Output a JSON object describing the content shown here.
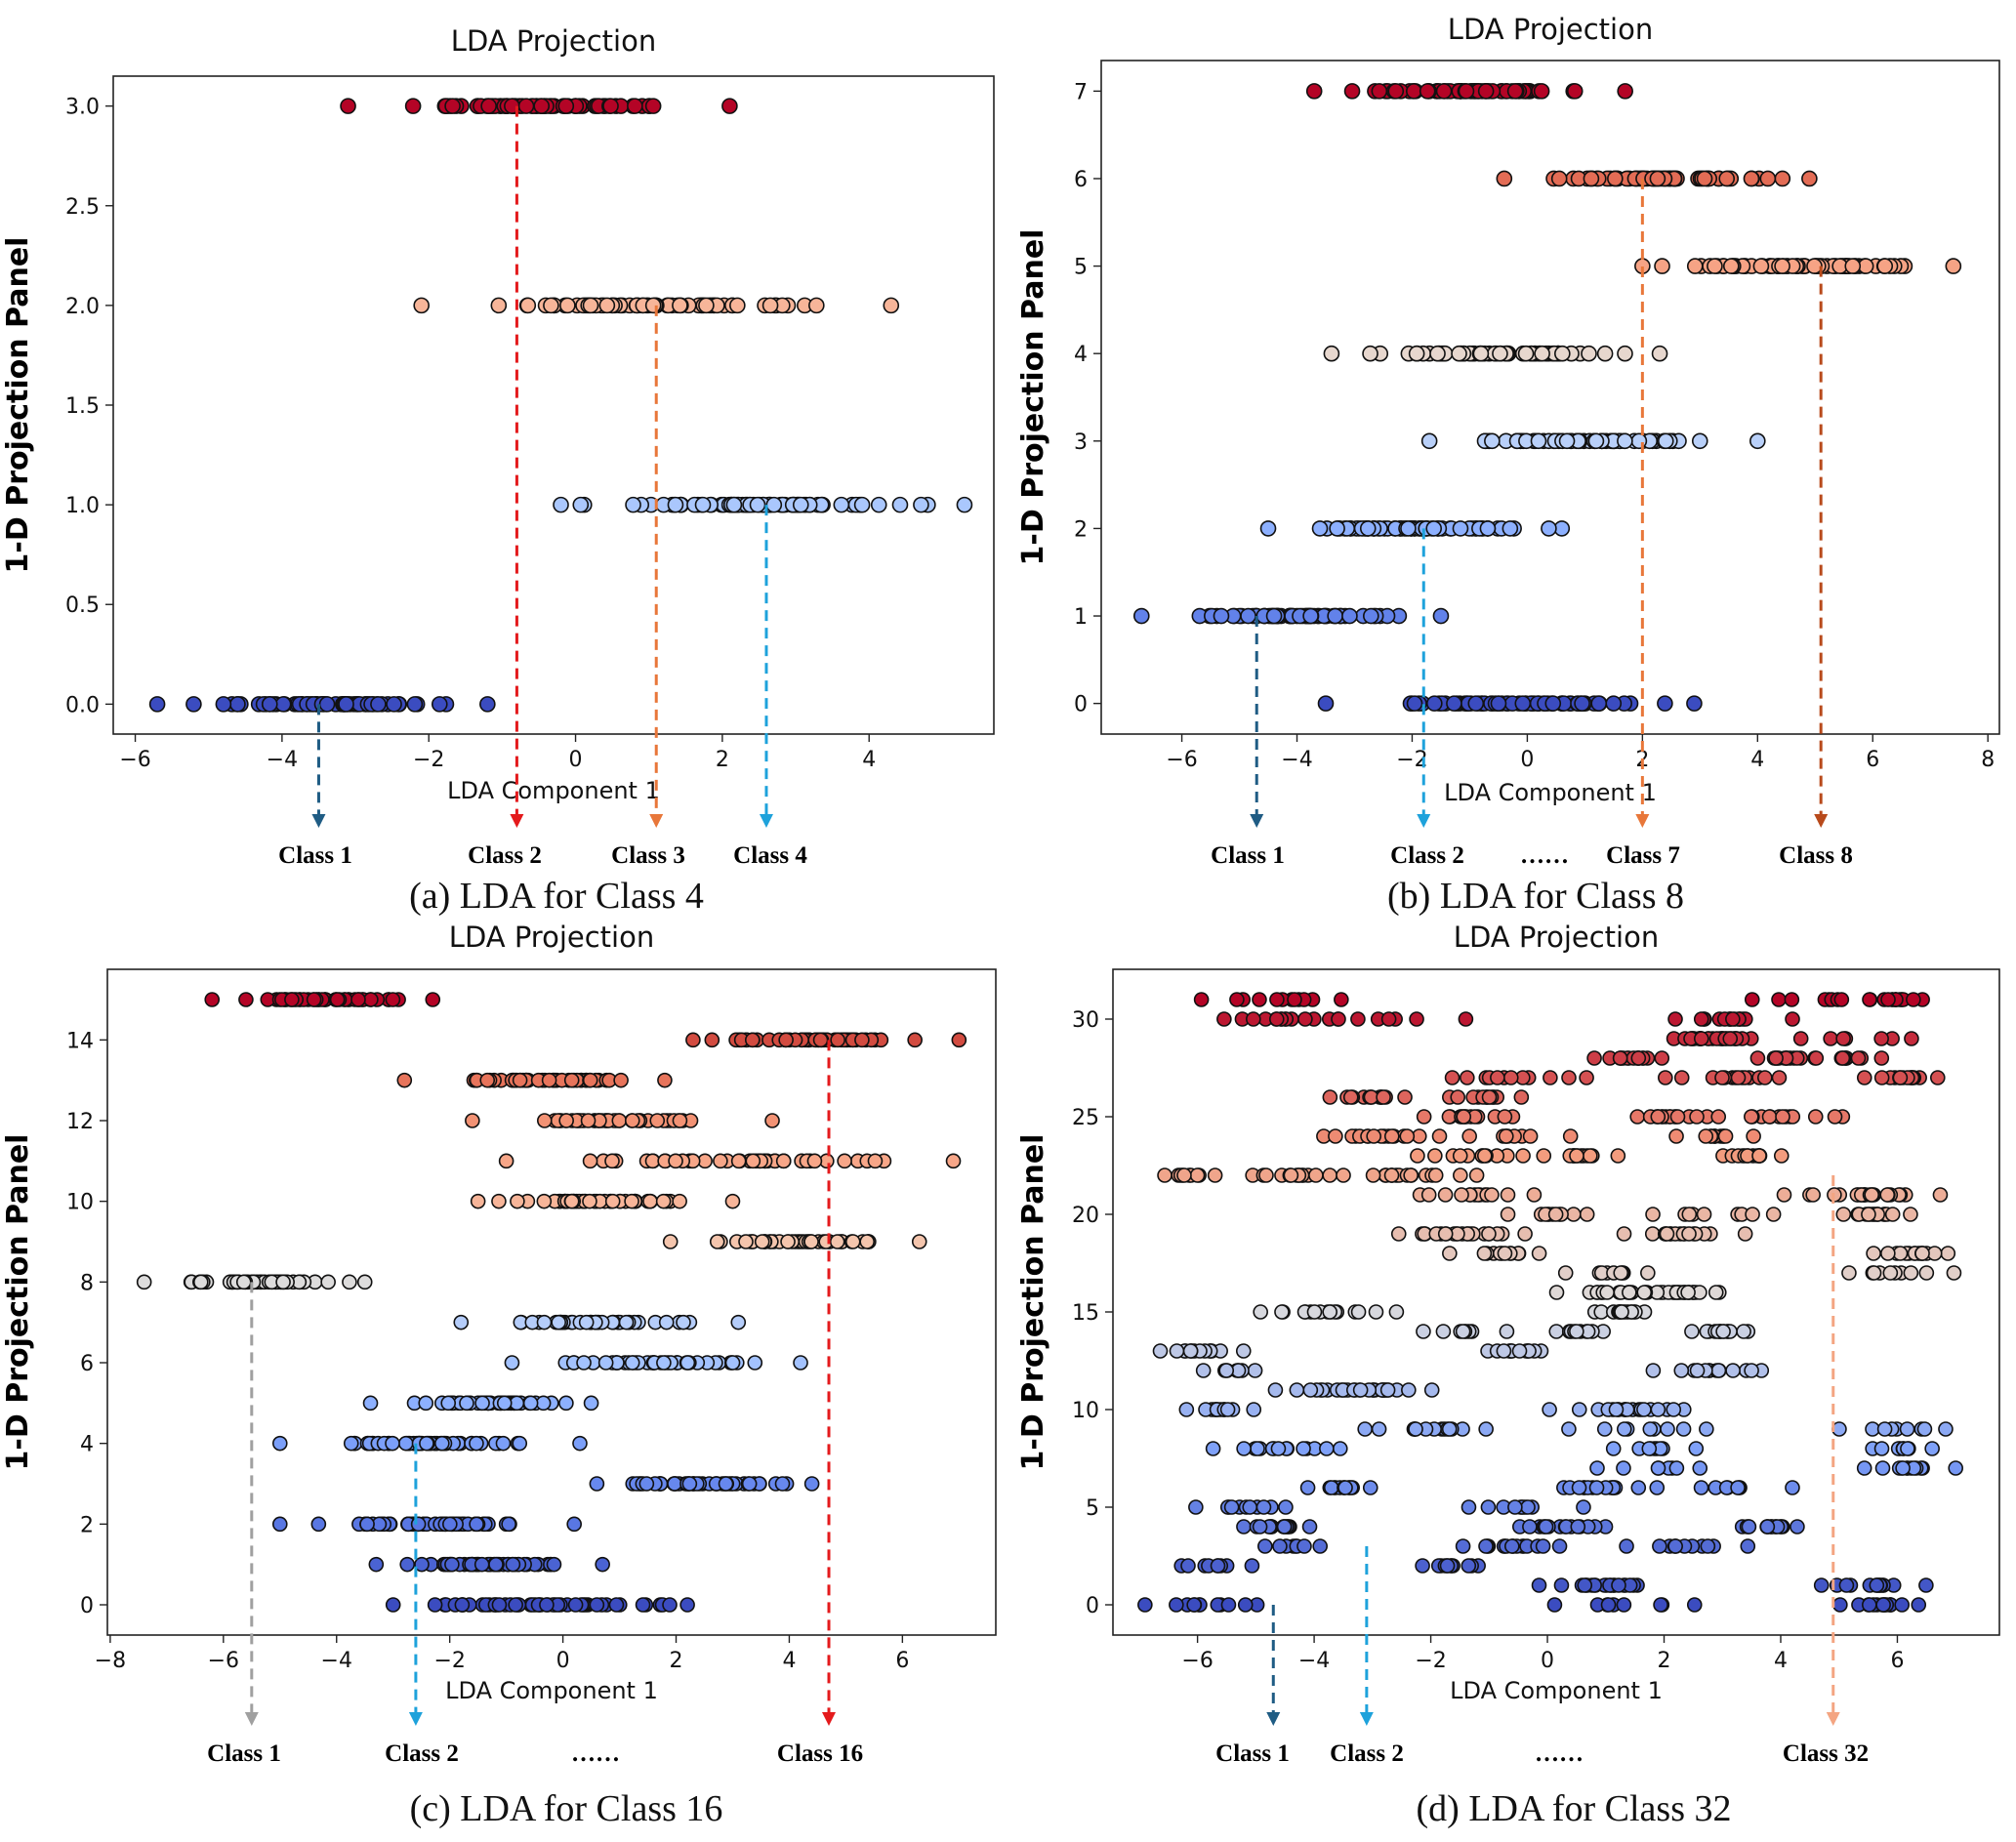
{
  "chart_data": [
    {
      "type": "scatter",
      "title": "LDA Projection",
      "xlabel": "LDA Component 1",
      "ylabel": "1-D Projection Panel",
      "caption": "(a) LDA for Class 4",
      "xlim": [
        -6.3,
        5.7
      ],
      "ylim": [
        -0.15,
        3.15
      ],
      "xticks": [
        -6,
        -4,
        -2,
        0,
        2,
        4
      ],
      "yticks": [
        0.0,
        0.5,
        1.0,
        1.5,
        2.0,
        2.5,
        3.0
      ],
      "ytick_labels": [
        "0.0",
        "0.5",
        "1.0",
        "1.5",
        "2.0",
        "2.5",
        "3.0"
      ],
      "series": [
        {
          "level": 0.0,
          "color": "#3b4cc0",
          "xmin": -5.7,
          "xmax": -1.2,
          "count": 70
        },
        {
          "level": 1.0,
          "color": "#aac7fd",
          "xmin": -0.2,
          "xmax": 5.3,
          "count": 80
        },
        {
          "level": 2.0,
          "color": "#f7b599",
          "xmin": -2.1,
          "xmax": 4.3,
          "count": 70
        },
        {
          "level": 3.0,
          "color": "#b40426",
          "xmin": -3.1,
          "xmax": 2.1,
          "count": 70
        }
      ],
      "arrows": [
        {
          "x": -3.5,
          "label": "Class 1",
          "color": "#1f5c84",
          "style": "dashed"
        },
        {
          "x": -0.8,
          "label": "Class 2",
          "color": "#e41a1c",
          "style": "dashed"
        },
        {
          "x": 1.1,
          "label": "Class 3",
          "color": "#e8773a",
          "style": "dashed"
        },
        {
          "x": 2.6,
          "label": "Class 4",
          "color": "#1ea2db",
          "style": "dashed"
        }
      ],
      "ellipsis": ""
    },
    {
      "type": "scatter",
      "title": "LDA Projection",
      "xlabel": "LDA Component 1",
      "ylabel": "1-D Projection Panel",
      "caption": "(b) LDA for Class 8",
      "xlim": [
        -7.4,
        8.2
      ],
      "ylim": [
        -0.35,
        7.35
      ],
      "xticks": [
        -6,
        -4,
        -2,
        0,
        2,
        4,
        6,
        8
      ],
      "yticks": [
        0,
        1,
        2,
        3,
        4,
        5,
        6,
        7
      ],
      "ytick_labels": [
        "0",
        "1",
        "2",
        "3",
        "4",
        "5",
        "6",
        "7"
      ],
      "series": [
        {
          "level": 0,
          "color": "#3b4cc0",
          "xmin": -3.5,
          "xmax": 2.9,
          "count": 70
        },
        {
          "level": 1,
          "color": "#6282ea",
          "xmin": -6.7,
          "xmax": -1.5,
          "count": 70
        },
        {
          "level": 2,
          "color": "#8db0fe",
          "xmin": -4.5,
          "xmax": 0.6,
          "count": 70
        },
        {
          "level": 3,
          "color": "#b9d0f9",
          "xmin": -1.7,
          "xmax": 4.0,
          "count": 60
        },
        {
          "level": 4,
          "color": "#e7d7ce",
          "xmin": -3.4,
          "xmax": 2.3,
          "count": 60
        },
        {
          "level": 5,
          "color": "#f6a385",
          "xmin": 2.0,
          "xmax": 7.4,
          "count": 70
        },
        {
          "level": 6,
          "color": "#e36c55",
          "xmin": -0.4,
          "xmax": 4.9,
          "count": 70
        },
        {
          "level": 7,
          "color": "#b40426",
          "xmin": -3.7,
          "xmax": 1.7,
          "count": 70
        }
      ],
      "arrows": [
        {
          "x": -4.7,
          "label": "Class 1",
          "color": "#1f5c84",
          "style": "dashed"
        },
        {
          "x": -1.8,
          "label": "Class 2",
          "color": "#1ea2db",
          "style": "dashed"
        },
        {
          "x": 2.0,
          "label": "Class 7",
          "color": "#e8773a",
          "style": "dashed"
        },
        {
          "x": 5.1,
          "label": "Class 8",
          "color": "#b84a1b",
          "style": "dashed"
        }
      ],
      "ellipsis": "……"
    },
    {
      "type": "scatter",
      "title": "LDA Projection",
      "xlabel": "LDA Component 1",
      "ylabel": "1-D Projection Panel",
      "caption": "(c) LDA for Class 16",
      "xlim": [
        -8.05,
        7.65
      ],
      "ylim": [
        -0.75,
        15.75
      ],
      "xticks": [
        -8,
        -6,
        -4,
        -2,
        0,
        2,
        4,
        6
      ],
      "yticks": [
        0,
        2,
        4,
        6,
        8,
        10,
        12,
        14
      ],
      "ytick_labels": [
        "0",
        "2",
        "4",
        "6",
        "8",
        "10",
        "12",
        "14"
      ],
      "series": [
        {
          "level": 0,
          "color": "#3b4cc0",
          "xmin": -3.0,
          "xmax": 2.2,
          "count": 50
        },
        {
          "level": 1,
          "color": "#4a63d3",
          "xmin": -3.3,
          "xmax": 0.7,
          "count": 50
        },
        {
          "level": 2,
          "color": "#5977e3",
          "xmin": -5.0,
          "xmax": 0.2,
          "count": 50
        },
        {
          "level": 3,
          "color": "#6788ee",
          "xmin": 0.6,
          "xmax": 4.4,
          "count": 50
        },
        {
          "level": 4,
          "color": "#7b9ff9",
          "xmin": -5.0,
          "xmax": 0.3,
          "count": 50
        },
        {
          "level": 5,
          "color": "#8db0fe",
          "xmin": -3.4,
          "xmax": 0.5,
          "count": 45
        },
        {
          "level": 6,
          "color": "#a3c2fe",
          "xmin": -0.9,
          "xmax": 4.2,
          "count": 45
        },
        {
          "level": 7,
          "color": "#b5cdfa",
          "xmin": -1.8,
          "xmax": 3.1,
          "count": 45
        },
        {
          "level": 8,
          "color": "#dddcdc",
          "xmin": -7.4,
          "xmax": -3.5,
          "count": 50
        },
        {
          "level": 9,
          "color": "#f4c5ad",
          "xmin": 1.9,
          "xmax": 6.3,
          "count": 45
        },
        {
          "level": 10,
          "color": "#f7b599",
          "xmin": -1.5,
          "xmax": 3.0,
          "count": 45
        },
        {
          "level": 11,
          "color": "#f7a688",
          "xmin": -1.0,
          "xmax": 6.9,
          "count": 45
        },
        {
          "level": 12,
          "color": "#f29274",
          "xmin": -1.6,
          "xmax": 3.7,
          "count": 45
        },
        {
          "level": 13,
          "color": "#e7745b",
          "xmin": -2.8,
          "xmax": 1.8,
          "count": 45
        },
        {
          "level": 14,
          "color": "#d24b40",
          "xmin": 2.3,
          "xmax": 7.0,
          "count": 50
        },
        {
          "level": 15,
          "color": "#b40426",
          "xmin": -6.2,
          "xmax": -2.3,
          "count": 50
        }
      ],
      "arrows": [
        {
          "x": -5.5,
          "label": "Class 1",
          "color": "#a0a0a0",
          "style": "dashed"
        },
        {
          "x": -2.6,
          "label": "Class 2",
          "color": "#1ea2db",
          "style": "dashed"
        },
        {
          "x": 4.7,
          "label": "Class 16",
          "color": "#e41a1c",
          "style": "dashed"
        }
      ],
      "ellipsis": "……"
    },
    {
      "type": "scatter",
      "title": "LDA Projection",
      "xlabel": "LDA Component 1",
      "ylabel": "1-D Projection Panel",
      "caption": "(d) LDA for Class 32",
      "xlim": [
        -7.45,
        7.75
      ],
      "ylim": [
        -1.55,
        32.55
      ],
      "xticks": [
        -6,
        -4,
        -2,
        0,
        2,
        4,
        6
      ],
      "yticks": [
        0,
        5,
        10,
        15,
        20,
        25,
        30
      ],
      "ytick_labels": [
        "0",
        "5",
        "10",
        "15",
        "20",
        "25",
        "30"
      ],
      "series_note": "32 class rows at levels 0-31, colored on a blue-to-red (coolwarm) scale",
      "arrows": [
        {
          "x": -4.7,
          "label": "Class 1",
          "color": "#1f5c84",
          "style": "dashed"
        },
        {
          "x": -3.1,
          "label": "Class 2",
          "color": "#1ea2db",
          "style": "dashed"
        },
        {
          "x": 4.9,
          "label": "Class 32",
          "color": "#f4a582",
          "style": "dashed"
        }
      ],
      "ellipsis": "……"
    }
  ]
}
